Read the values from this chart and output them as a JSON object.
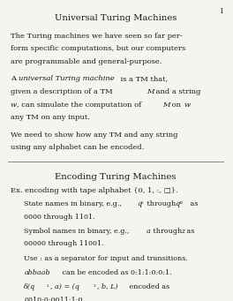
{
  "page_num": "1",
  "title1": "Universal Turing Machines",
  "title2": "Encoding Turing Machines",
  "bg_color": "#f5f5f0",
  "text_color": "#1a1a1a",
  "figsize": [
    2.64,
    3.41
  ],
  "dpi": 100
}
